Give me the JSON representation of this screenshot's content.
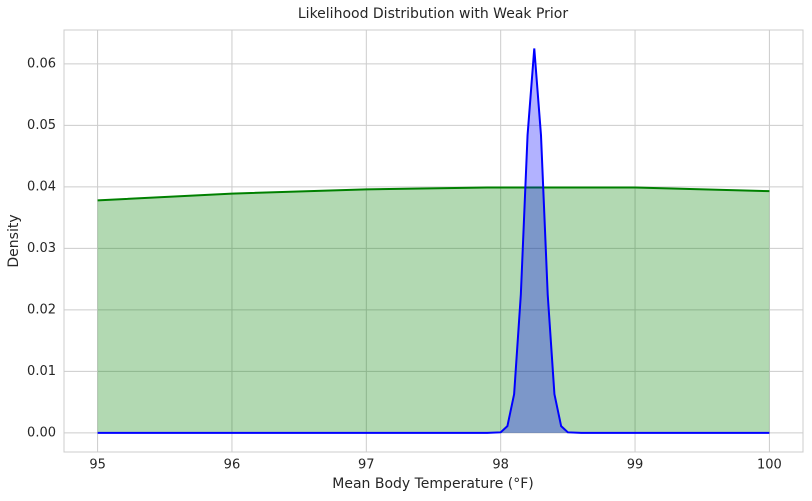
{
  "chart_data": {
    "type": "area",
    "title": "Likelihood Distribution with Weak Prior",
    "x_label": "Mean Body Temperature (°F)",
    "y_label": "Density",
    "x": [
      95,
      96,
      97,
      97.9,
      98.0,
      98.05,
      98.1,
      98.15,
      98.2,
      98.25,
      98.3,
      98.35,
      98.4,
      98.45,
      98.5,
      98.6,
      99,
      100
    ],
    "series": [
      {
        "color": "#008000",
        "values": [
          0.0378,
          0.0389,
          0.0396,
          0.0399,
          0.0399,
          0.0399,
          0.0399,
          0.0399,
          0.0399,
          0.0399,
          0.0399,
          0.0399,
          0.0399,
          0.0399,
          0.0399,
          0.0399,
          0.0399,
          0.0393
        ]
      },
      {
        "color": "#0000ff",
        "values": [
          0,
          0,
          0,
          0,
          0.0001,
          0.0011,
          0.0063,
          0.0225,
          0.0484,
          0.0625,
          0.0484,
          0.0225,
          0.0063,
          0.0011,
          0.0001,
          0,
          0,
          0
        ]
      }
    ],
    "fill_opacity": 0.3,
    "xlim": [
      94.75,
      100.25
    ],
    "ylim": [
      -0.0031,
      0.0655
    ],
    "xticks": [
      95,
      96,
      97,
      98,
      99,
      100
    ],
    "yticks": [
      {
        "value": 0,
        "label": "0.00"
      },
      {
        "value": 0.01,
        "label": "0.01"
      },
      {
        "value": 0.02,
        "label": "0.02"
      },
      {
        "value": 0.03,
        "label": "0.03"
      },
      {
        "value": 0.04,
        "label": "0.04"
      },
      {
        "value": 0.05,
        "label": "0.05"
      },
      {
        "value": 0.06,
        "label": "0.06"
      }
    ],
    "grid": true
  }
}
